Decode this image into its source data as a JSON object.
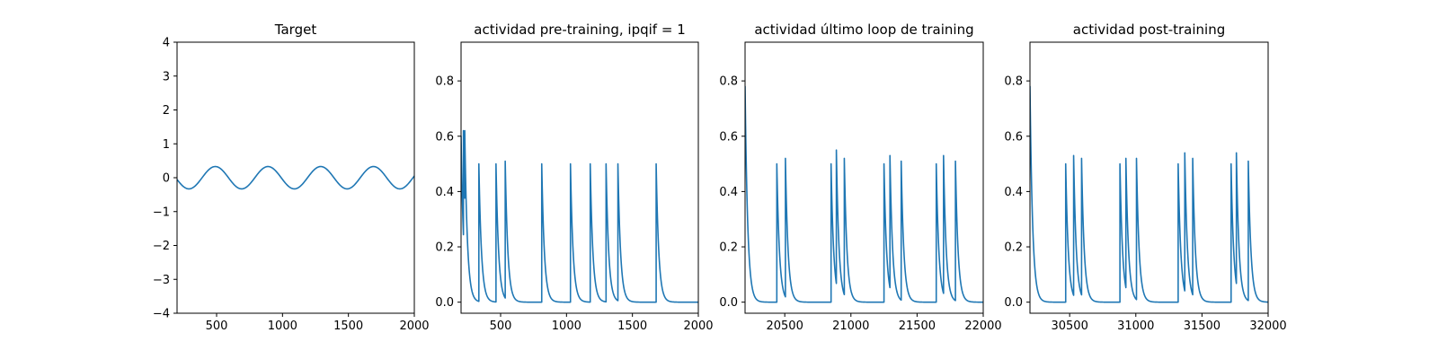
{
  "chart_data": [
    {
      "type": "line",
      "title": "Target",
      "xlabel": "",
      "ylabel": "",
      "xlim": [
        200,
        2000
      ],
      "ylim": [
        -4,
        4
      ],
      "xticks": [
        500,
        1000,
        1500,
        2000
      ],
      "xtick_labels": [
        "500",
        "1000",
        "1500",
        "2000"
      ],
      "yticks": [
        -4,
        -3,
        -2,
        -1,
        0,
        1,
        2,
        3,
        4
      ],
      "ytick_labels": [
        "−4",
        "−3",
        "−2",
        "−1",
        "0",
        "1",
        "2",
        "3",
        "4"
      ],
      "grid": false,
      "color": "#1f77b4",
      "series": [
        {
          "form": "sine",
          "x_start": 200,
          "x_end": 2000,
          "amplitude": 0.33,
          "period": 400,
          "trough_at": 290,
          "points": [
            [
              290,
              -0.33
            ],
            [
              490,
              0.33
            ],
            [
              690,
              -0.33
            ],
            [
              890,
              0.33
            ],
            [
              1090,
              -0.33
            ],
            [
              1290,
              0.33
            ],
            [
              1490,
              -0.33
            ],
            [
              1690,
              0.33
            ],
            [
              1890,
              -0.33
            ],
            [
              2000,
              0.05
            ]
          ]
        }
      ]
    },
    {
      "type": "line",
      "title": "actividad pre-training, ipqif = 1",
      "xlabel": "",
      "ylabel": "",
      "xlim": [
        200,
        2000
      ],
      "ylim": [
        -0.04,
        0.94
      ],
      "xticks": [
        500,
        1000,
        1500,
        2000
      ],
      "xtick_labels": [
        "500",
        "1000",
        "1500",
        "2000"
      ],
      "yticks": [
        0.0,
        0.2,
        0.4,
        0.6,
        0.8
      ],
      "ytick_labels": [
        "0.0",
        "0.2",
        "0.4",
        "0.6",
        "0.8"
      ],
      "grid": false,
      "color": "#1f77b4",
      "series": [
        {
          "form": "spikes",
          "decay_scale": 20,
          "start_value": 0.6,
          "spikes": [
            [
              218,
              0.62
            ],
            [
              228,
              0.62
            ],
            [
              335,
              0.5
            ],
            [
              465,
              0.5
            ],
            [
              535,
              0.51
            ],
            [
              812,
              0.5
            ],
            [
              1030,
              0.5
            ],
            [
              1180,
              0.5
            ],
            [
              1300,
              0.5
            ],
            [
              1390,
              0.5
            ],
            [
              1680,
              0.5
            ]
          ]
        }
      ]
    },
    {
      "type": "line",
      "title": "actividad último loop de training",
      "xlabel": "",
      "ylabel": "",
      "xlim": [
        20200,
        22000
      ],
      "ylim": [
        -0.04,
        0.94
      ],
      "xticks": [
        20500,
        21000,
        21500,
        22000
      ],
      "xtick_labels": [
        "20500",
        "21000",
        "21500",
        "22000"
      ],
      "yticks": [
        0.0,
        0.2,
        0.4,
        0.6,
        0.8
      ],
      "ytick_labels": [
        "0.0",
        "0.2",
        "0.4",
        "0.6",
        "0.8"
      ],
      "grid": false,
      "color": "#1f77b4",
      "series": [
        {
          "form": "spikes",
          "decay_scale": 20,
          "start_value": 0.78,
          "spikes": [
            [
              20440,
              0.5
            ],
            [
              20505,
              0.52
            ],
            [
              20850,
              0.5
            ],
            [
              20890,
              0.55
            ],
            [
              20950,
              0.52
            ],
            [
              21250,
              0.5
            ],
            [
              21295,
              0.53
            ],
            [
              21380,
              0.51
            ],
            [
              21645,
              0.5
            ],
            [
              21700,
              0.53
            ],
            [
              21790,
              0.51
            ]
          ]
        }
      ]
    },
    {
      "type": "line",
      "title": "actividad post-training",
      "xlabel": "",
      "ylabel": "",
      "xlim": [
        30200,
        32000
      ],
      "ylim": [
        -0.04,
        0.94
      ],
      "xticks": [
        30500,
        31000,
        31500,
        32000
      ],
      "xtick_labels": [
        "30500",
        "31000",
        "31500",
        "32000"
      ],
      "yticks": [
        0.0,
        0.2,
        0.4,
        0.6,
        0.8
      ],
      "ytick_labels": [
        "0.0",
        "0.2",
        "0.4",
        "0.6",
        "0.8"
      ],
      "grid": false,
      "color": "#1f77b4",
      "series": [
        {
          "form": "spikes",
          "decay_scale": 20,
          "start_value": 0.78,
          "spikes": [
            [
              30470,
              0.5
            ],
            [
              30530,
              0.53
            ],
            [
              30590,
              0.52
            ],
            [
              30880,
              0.5
            ],
            [
              30925,
              0.52
            ],
            [
              31005,
              0.52
            ],
            [
              31320,
              0.5
            ],
            [
              31370,
              0.54
            ],
            [
              31430,
              0.52
            ],
            [
              31720,
              0.5
            ],
            [
              31760,
              0.54
            ],
            [
              31850,
              0.51
            ]
          ]
        }
      ]
    }
  ]
}
